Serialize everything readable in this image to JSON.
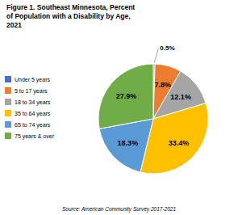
{
  "chart_data": {
    "type": "pie",
    "title": "Figure 1. Southeast Minnesota, Percent\nof Population with a Disability by Age,\n2021",
    "annotations": [
      "Source: American Community Survey 2017-2021"
    ],
    "categories": [
      "Under 5 years",
      "5 to 17 years",
      "18 to 34 years",
      "35 to 64 years",
      "65 to 74 years",
      "75 years & over"
    ],
    "values": [
      0.5,
      7.8,
      12.1,
      33.4,
      18.3,
      27.9
    ],
    "value_labels": [
      "0.5%",
      "7.8%",
      "12.1%",
      "33.4%",
      "18.3%",
      "27.9%"
    ],
    "colors": [
      "#4472C4",
      "#ED7D31",
      "#A5A5A5",
      "#FFC000",
      "#5B9BD5",
      "#70AD47"
    ],
    "data_labels": true,
    "legend": "left"
  }
}
